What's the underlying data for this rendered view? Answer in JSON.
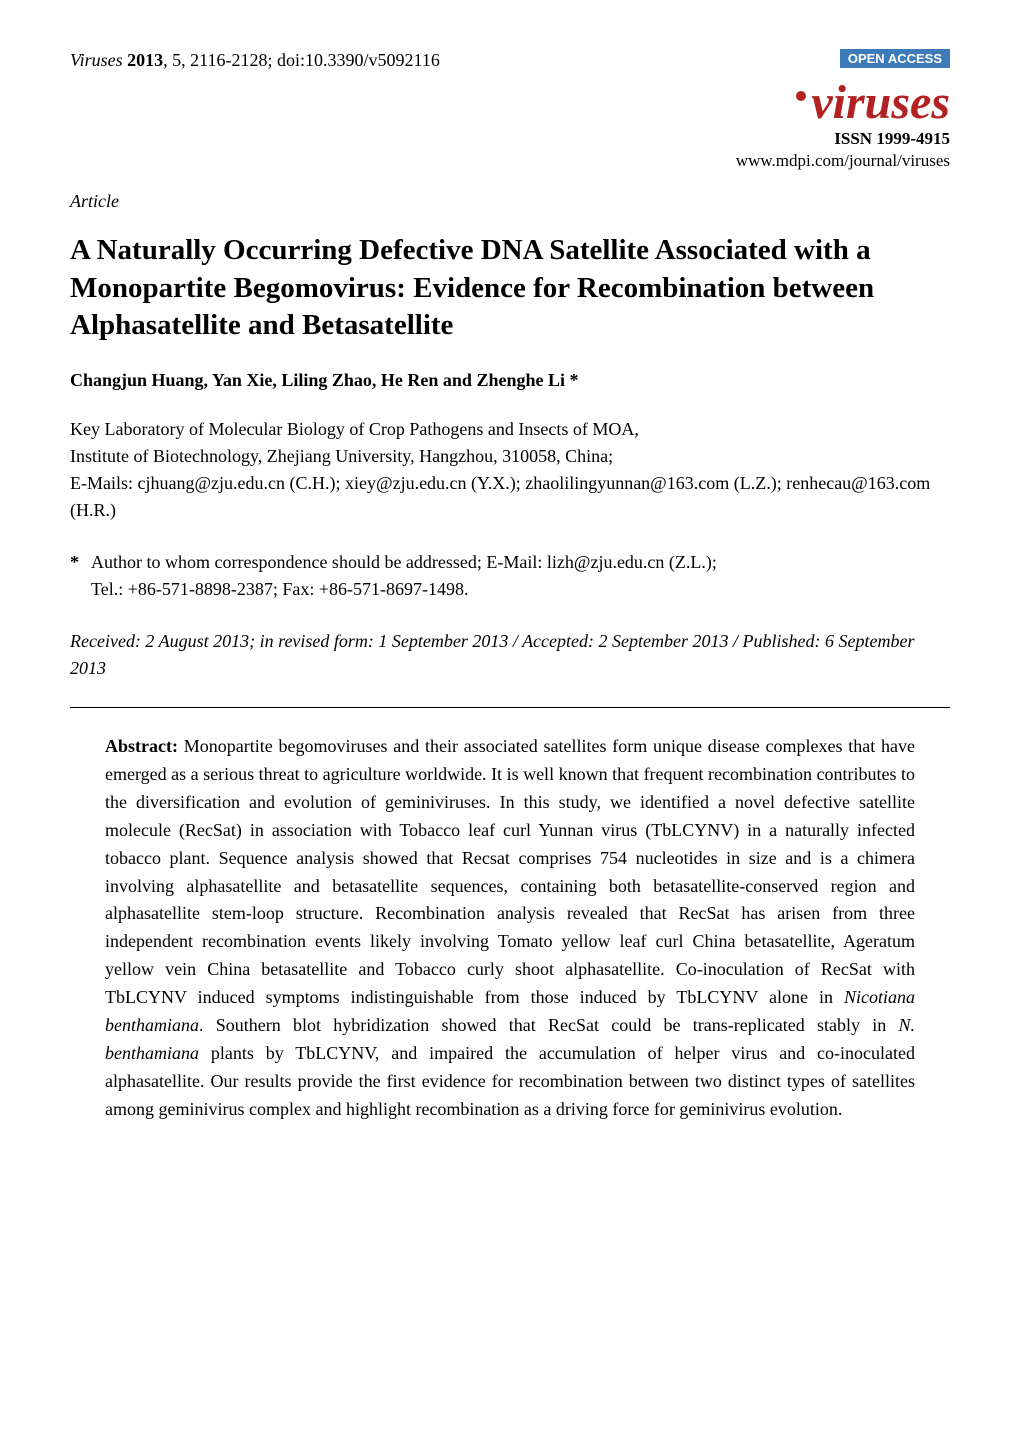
{
  "header": {
    "journal_name": "Viruses",
    "year": "2013",
    "volume": "5",
    "pages": "2116-2128",
    "doi": "doi:10.3390/v5092116",
    "open_access_label": "OPEN ACCESS",
    "journal_logo": "viruses",
    "issn": "ISSN 1999-4915",
    "url": "www.mdpi.com/journal/viruses"
  },
  "article": {
    "type": "Article",
    "title": "A Naturally Occurring Defective DNA Satellite Associated with a Monopartite Begomovirus: Evidence for Recombination between Alphasatellite and Betasatellite",
    "authors": "Changjun Huang, Yan Xie, Liling Zhao, He Ren and Zhenghe Li *",
    "affiliation_line1": "Key Laboratory of Molecular Biology of Crop Pathogens and Insects of MOA,",
    "affiliation_line2": "Institute of Biotechnology, Zhejiang University, Hangzhou, 310058, China;",
    "affiliation_line3": "E-Mails: cjhuang@zju.edu.cn (C.H.); xiey@zju.edu.cn (Y.X.); zhaolilingyunnan@163.com (L.Z.); renhecau@163.com (H.R.)",
    "correspondence_marker": "*",
    "correspondence_line1": "Author to whom correspondence should be addressed; E-Mail: lizh@zju.edu.cn (Z.L.);",
    "correspondence_line2": "Tel.: +86-571-8898-2387; Fax: +86-571-8697-1498.",
    "dates": "Received: 2 August 2013; in revised form: 1 September 2013 / Accepted: 2 September 2013 / Published: 6 September 2013"
  },
  "abstract": {
    "label": "Abstract:",
    "text_part1": " Monopartite begomoviruses and their associated satellites form unique disease complexes that have emerged as a serious threat to agriculture worldwide. It is well known that frequent recombination contributes to the diversification and evolution of geminiviruses. In this study, we identified a novel defective satellite molecule (RecSat) in association with Tobacco leaf curl Yunnan virus (TbLCYNV) in a naturally infected tobacco plant. Sequence analysis showed that Recsat comprises 754 nucleotides in size and is a chimera involving alphasatellite and betasatellite sequences, containing both betasatellite-conserved region and alphasatellite stem-loop structure. Recombination analysis revealed that RecSat has arisen from three independent recombination events likely involving Tomato yellow leaf curl China betasatellite, Ageratum yellow vein China betasatellite and Tobacco curly shoot alphasatellite. Co-inoculation of RecSat with TbLCYNV induced symptoms indistinguishable from those induced by TbLCYNV alone in ",
    "italic1": "Nicotiana benthamiana",
    "text_part2": ". Southern blot hybridization showed that RecSat could be trans-replicated stably in ",
    "italic2": "N. benthamiana",
    "text_part3": " plants by TbLCYNV, and impaired the accumulation of helper virus and co-inoculated alphasatellite. Our results provide the first evidence for recombination between two distinct types of satellites among geminivirus complex and highlight recombination as a driving force for geminivirus evolution."
  },
  "colors": {
    "open_access_bg": "#3d7bb8",
    "journal_logo_color": "#b22222",
    "text_color": "#000000",
    "background_color": "#ffffff"
  },
  "typography": {
    "body_font": "Times New Roman",
    "title_fontsize": 29,
    "body_fontsize": 18,
    "logo_fontsize": 48,
    "open_access_fontsize": 13
  }
}
